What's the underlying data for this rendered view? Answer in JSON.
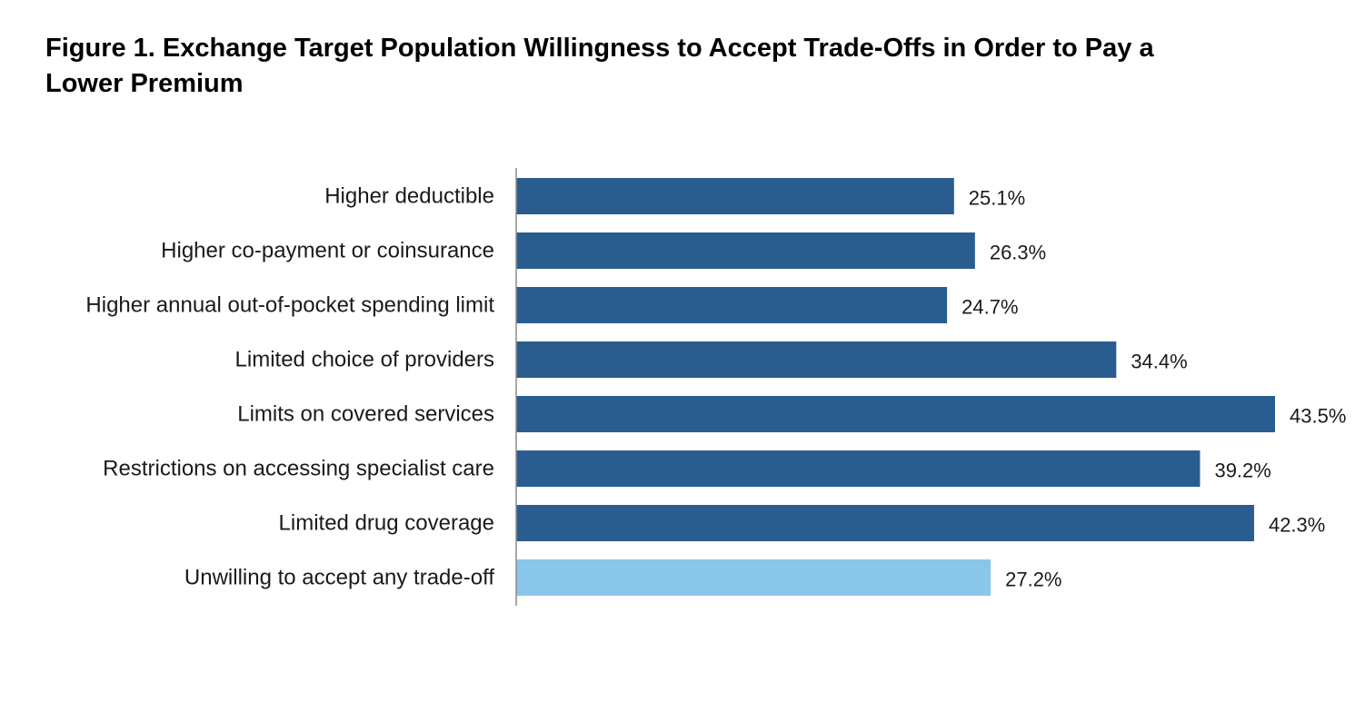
{
  "chart_data": {
    "type": "bar",
    "orientation": "horizontal",
    "title": "Figure 1. Exchange Target Population Willingness to Accept Trade-Offs in Order to Pay a Lower Premium",
    "categories": [
      "Higher deductible",
      "Higher co-payment or coinsurance",
      "Higher annual out-of-pocket spending limit",
      "Limited choice of providers",
      "Limits on covered services",
      "Restrictions on accessing specialist care",
      "Limited drug coverage",
      "Unwilling to accept any trade-off"
    ],
    "values": [
      25.1,
      26.3,
      24.7,
      34.4,
      43.5,
      39.2,
      42.3,
      27.2
    ],
    "value_labels": [
      "25.1%",
      "26.3%",
      "24.7%",
      "34.4%",
      "43.5%",
      "39.2%",
      "42.3%",
      "27.2%"
    ],
    "bar_colors": [
      "#2a5d8f",
      "#2a5d8f",
      "#2a5d8f",
      "#2a5d8f",
      "#2a5d8f",
      "#2a5d8f",
      "#2a5d8f",
      "#89c6ea"
    ],
    "xlim": [
      0,
      43.5
    ],
    "grid": false,
    "legend": "none"
  }
}
